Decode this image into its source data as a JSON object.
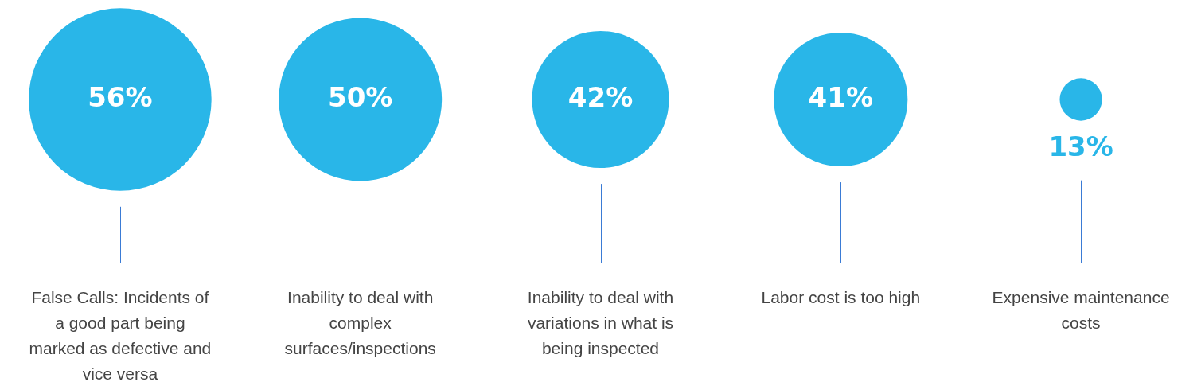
{
  "chart_data": {
    "type": "other",
    "categories": [
      "False Calls: Incidents of a good part being marked as defective and vice versa",
      "Inability to deal with complex surfaces/inspections",
      "Inability to deal with variations in what is being inspected",
      "Labor cost is too high",
      "Expensive maintenance costs"
    ],
    "values": [
      56,
      50,
      42,
      41,
      13
    ],
    "value_labels": [
      "56%",
      "50%",
      "42%",
      "41%",
      "13%"
    ],
    "color": "#29b6e8"
  }
}
